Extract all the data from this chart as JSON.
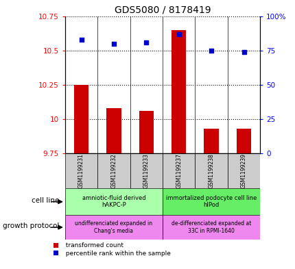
{
  "title": "GDS5080 / 8178419",
  "samples": [
    "GSM1199231",
    "GSM1199232",
    "GSM1199233",
    "GSM1199237",
    "GSM1199238",
    "GSM1199239"
  ],
  "transformed_count": [
    10.25,
    10.08,
    10.06,
    10.65,
    9.93,
    9.93
  ],
  "percentile_rank": [
    83,
    80,
    81,
    87,
    75,
    74
  ],
  "ylim_left": [
    9.75,
    10.75
  ],
  "ylim_right": [
    0,
    100
  ],
  "yticks_left": [
    9.75,
    10.0,
    10.25,
    10.5,
    10.75
  ],
  "yticks_right": [
    0,
    25,
    50,
    75,
    100
  ],
  "ytick_labels_left": [
    "9.75",
    "10",
    "10.25",
    "10.5",
    "10.75"
  ],
  "ytick_labels_right": [
    "0",
    "25",
    "50",
    "75",
    "100%"
  ],
  "bar_color": "#cc0000",
  "dot_color": "#0000cc",
  "baseline": 9.75,
  "cell_line_groups": [
    {
      "label": "amniotic-fluid derived\nhAKPC-P",
      "start": 0,
      "end": 3,
      "color": "#aaffaa"
    },
    {
      "label": "immortalized podocyte cell line\nhIPod",
      "start": 3,
      "end": 6,
      "color": "#66ee66"
    }
  ],
  "growth_protocol_groups": [
    {
      "label": "undifferenciated expanded in\nChang's media",
      "start": 0,
      "end": 3,
      "color": "#ee88ee"
    },
    {
      "label": "de-differenciated expanded at\n33C in RPMI-1640",
      "start": 3,
      "end": 6,
      "color": "#ee88ee"
    }
  ],
  "cell_line_label": "cell line",
  "growth_protocol_label": "growth protocol",
  "legend_items": [
    {
      "color": "#cc0000",
      "label": "  transformed count"
    },
    {
      "color": "#0000cc",
      "label": "  percentile rank within the sample"
    }
  ],
  "background_color": "#ffffff",
  "plot_bg_color": "#ffffff",
  "sample_box_color": "#cccccc",
  "figsize": [
    4.31,
    3.93
  ],
  "dpi": 100
}
